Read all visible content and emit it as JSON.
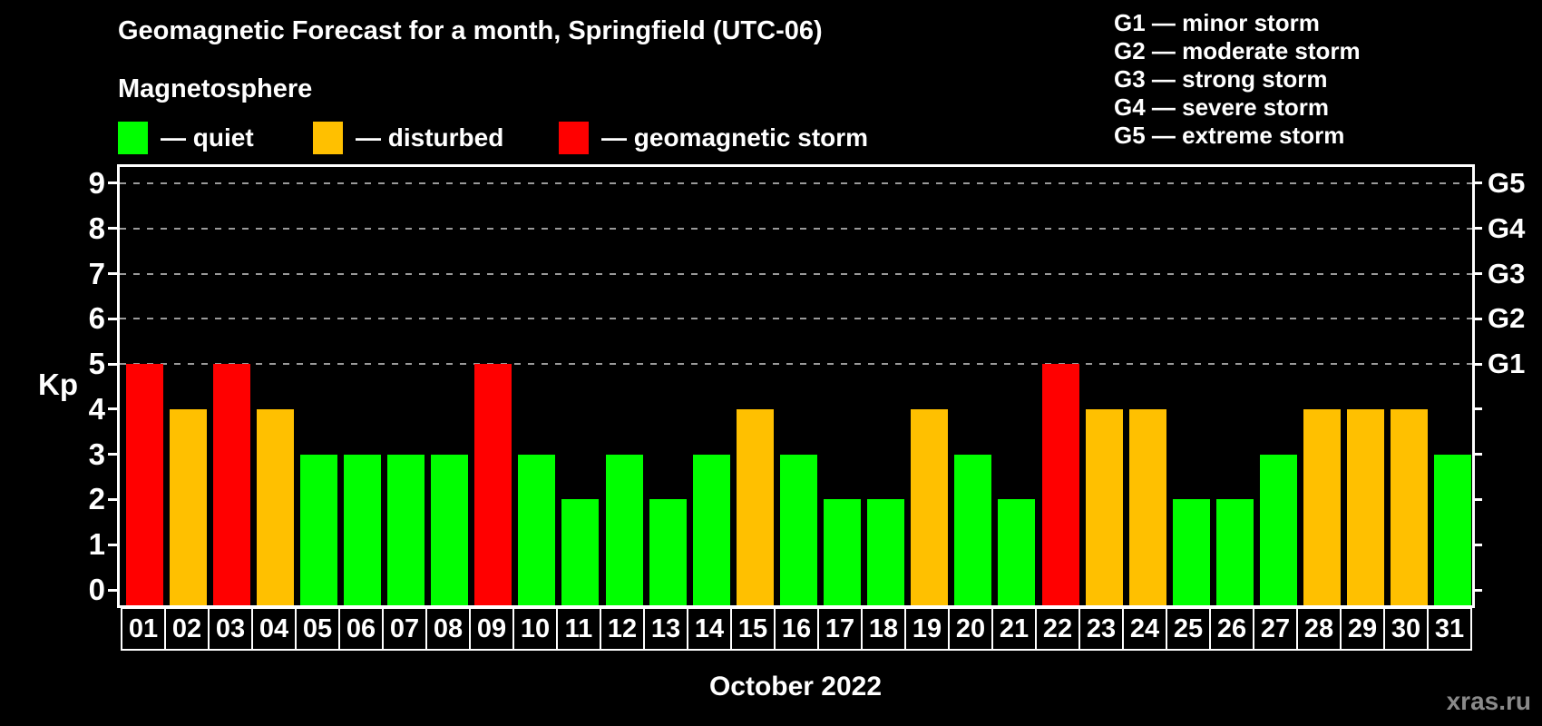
{
  "title": "Geomagnetic Forecast for a month, Springfield (UTC-06)",
  "subtitle": "Magnetosphere",
  "status_legend": [
    {
      "key": "quiet",
      "label": "— quiet",
      "color": "#00ff00"
    },
    {
      "key": "disturbed",
      "label": "— disturbed",
      "color": "#ffc000"
    },
    {
      "key": "storm",
      "label": "— geomagnetic storm",
      "color": "#ff0000"
    }
  ],
  "g_scale_legend": [
    "G1 — minor storm",
    "G2 — moderate storm",
    "G3 — strong storm",
    "G4 — severe storm",
    "G5 — extreme storm"
  ],
  "watermark": "xras.ru",
  "chart_data": {
    "type": "bar",
    "title": "Geomagnetic Forecast for a month, Springfield (UTC-06)",
    "xlabel": "October 2022",
    "ylabel": "Kp",
    "categories": [
      "01",
      "02",
      "03",
      "04",
      "05",
      "06",
      "07",
      "08",
      "09",
      "10",
      "11",
      "12",
      "13",
      "14",
      "15",
      "16",
      "17",
      "18",
      "19",
      "20",
      "21",
      "22",
      "23",
      "24",
      "25",
      "26",
      "27",
      "28",
      "29",
      "30",
      "31"
    ],
    "values": [
      5,
      4,
      5,
      4,
      3,
      3,
      3,
      3,
      5,
      3,
      2,
      3,
      2,
      3,
      4,
      3,
      2,
      2,
      4,
      3,
      2,
      5,
      4,
      4,
      2,
      2,
      3,
      4,
      4,
      4,
      3
    ],
    "bar_colors_by_status": {
      "quiet": "#00ff00",
      "disturbed": "#ffc000",
      "storm": "#ff0000"
    },
    "status_rule": {
      "storm_min_kp": 5,
      "disturbed_min_kp": 4
    },
    "ylim": [
      0,
      9.4
    ],
    "yticks": [
      0,
      1,
      2,
      3,
      4,
      5,
      6,
      7,
      8,
      9
    ],
    "gridlines_at_kp": [
      5,
      6,
      7,
      8,
      9
    ],
    "grid_style": "dashed",
    "grid_color": "#9a9a9a",
    "right_axis_labels": [
      {
        "kp": 5,
        "text": "G1"
      },
      {
        "kp": 6,
        "text": "G2"
      },
      {
        "kp": 7,
        "text": "G3"
      },
      {
        "kp": 8,
        "text": "G4"
      },
      {
        "kp": 9,
        "text": "G5"
      }
    ],
    "legend_position": "top-left"
  }
}
